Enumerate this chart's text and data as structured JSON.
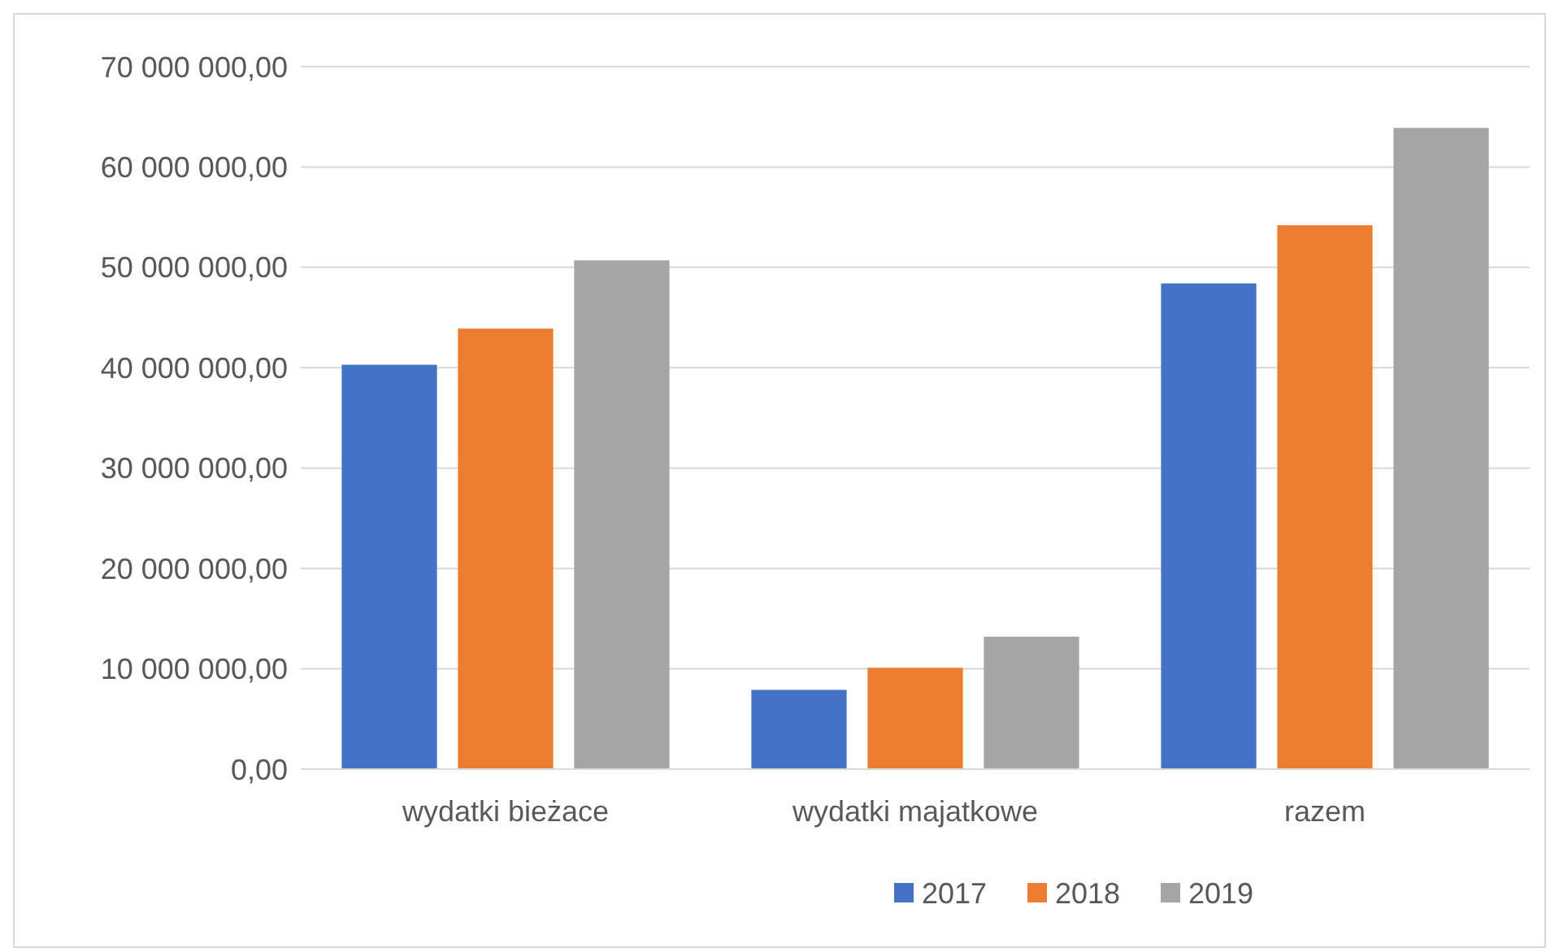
{
  "chart_data": {
    "type": "bar",
    "categories": [
      "wydatki bieżace",
      "wydatki majatkowe",
      "razem"
    ],
    "series": [
      {
        "name": "2017",
        "color": "#4472c4",
        "values": [
          40300000,
          7900000,
          48400000
        ]
      },
      {
        "name": "2018",
        "color": "#ed7d31",
        "values": [
          43900000,
          10100000,
          54200000
        ]
      },
      {
        "name": "2019",
        "color": "#a5a5a5",
        "values": [
          50700000,
          13200000,
          63900000
        ]
      }
    ],
    "ylim": [
      0,
      70000000
    ],
    "yticks": [
      {
        "value": 0,
        "label": "0,00"
      },
      {
        "value": 10000000,
        "label": "10 000 000,00"
      },
      {
        "value": 20000000,
        "label": "20 000 000,00"
      },
      {
        "value": 30000000,
        "label": "30 000 000,00"
      },
      {
        "value": 40000000,
        "label": "40 000 000,00"
      },
      {
        "value": 50000000,
        "label": "50 000 000,00"
      },
      {
        "value": 60000000,
        "label": "60 000 000,00"
      },
      {
        "value": 70000000,
        "label": "70 000 000,00"
      }
    ],
    "grid": "y",
    "legend": "bottom"
  }
}
